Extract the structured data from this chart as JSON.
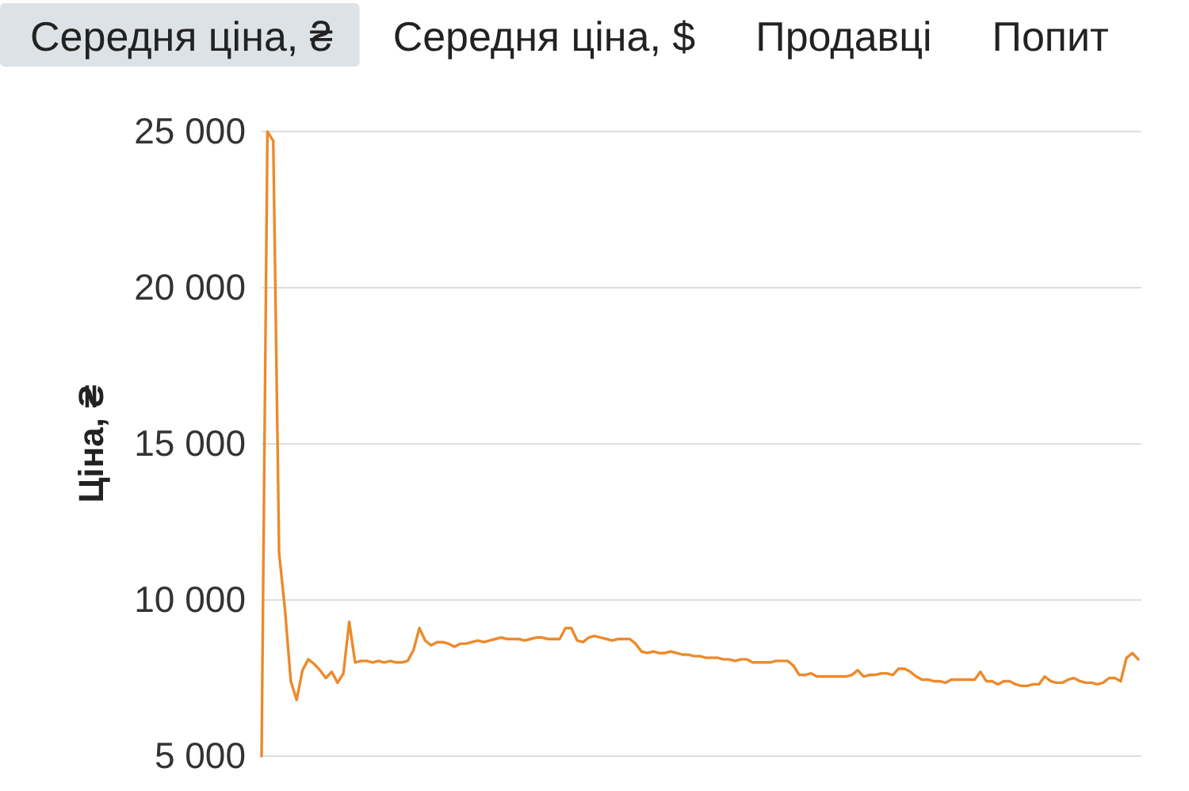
{
  "chart_data": {
    "type": "line",
    "title": "Середня ціна, ₴",
    "annotations": [
      "Середня ціна, $",
      "Продавці",
      "Попит"
    ],
    "ylabel": "Ціна, ₴",
    "categories": [
      null,
      null,
      null,
      null,
      null,
      null,
      null,
      null,
      null,
      null,
      null,
      null,
      null,
      null,
      null,
      null,
      null,
      null,
      null,
      null,
      null,
      null,
      null,
      null,
      null,
      null,
      null,
      null,
      null,
      null,
      null,
      null,
      null,
      null,
      null,
      null,
      null,
      null,
      null,
      null,
      null,
      null,
      null,
      null,
      null,
      null,
      null,
      null,
      null,
      null,
      null,
      null,
      null,
      null,
      null,
      null,
      null,
      null,
      null,
      null,
      null,
      null,
      null,
      null,
      null,
      null,
      null,
      null,
      null,
      null,
      null,
      null,
      null,
      null,
      null,
      null,
      null,
      null,
      null,
      null,
      null,
      null,
      null,
      null,
      null,
      null,
      null,
      null,
      null,
      null,
      null,
      null,
      null,
      null,
      null,
      null,
      null,
      null,
      null,
      null,
      null,
      null,
      null,
      null,
      null,
      null,
      null,
      null,
      null,
      null,
      null,
      null,
      null,
      null,
      null,
      null,
      null,
      null,
      null,
      null,
      null,
      null,
      null,
      null,
      null,
      null,
      null,
      null,
      null,
      null,
      null,
      null,
      null,
      null,
      null,
      null,
      null,
      null,
      null,
      null,
      null,
      null,
      null,
      null,
      null,
      null,
      null,
      null,
      null,
      null,
      null
    ],
    "values": [
      5000,
      25000,
      24700,
      11500,
      9700,
      7400,
      6800,
      7750,
      8100,
      7950,
      7750,
      7500,
      7700,
      7350,
      7650,
      9300,
      8000,
      8050,
      8050,
      8000,
      8050,
      8000,
      8050,
      8000,
      8000,
      8050,
      8400,
      9100,
      8700,
      8550,
      8650,
      8650,
      8600,
      8500,
      8600,
      8600,
      8650,
      8700,
      8650,
      8700,
      8750,
      8800,
      8750,
      8750,
      8750,
      8700,
      8750,
      8800,
      8800,
      8750,
      8750,
      8750,
      9100,
      9100,
      8700,
      8650,
      8800,
      8850,
      8800,
      8750,
      8700,
      8750,
      8750,
      8750,
      8600,
      8350,
      8300,
      8350,
      8300,
      8300,
      8350,
      8300,
      8250,
      8250,
      8200,
      8200,
      8150,
      8150,
      8150,
      8100,
      8100,
      8050,
      8100,
      8100,
      8000,
      8000,
      8000,
      8000,
      8050,
      8050,
      8050,
      7900,
      7600,
      7600,
      7650,
      7550,
      7550,
      7550,
      7550,
      7550,
      7550,
      7600,
      7750,
      7550,
      7600,
      7600,
      7650,
      7650,
      7600,
      7800,
      7800,
      7700,
      7550,
      7450,
      7450,
      7400,
      7400,
      7350,
      7450,
      7450,
      7450,
      7450,
      7450,
      7700,
      7400,
      7400,
      7300,
      7400,
      7400,
      7300,
      7250,
      7250,
      7300,
      7300,
      7550,
      7400,
      7350,
      7350,
      7450,
      7500,
      7400,
      7350,
      7350,
      7300,
      7350,
      7500,
      7500,
      7400,
      8150,
      8300,
      8100
    ],
    "color": "#ec8a2c",
    "ylim": [
      5000,
      25000
    ],
    "yticks": [
      {
        "value": 5000,
        "label": "5 000"
      },
      {
        "value": 10000,
        "label": "10 000"
      },
      {
        "value": 15000,
        "label": "15 000"
      },
      {
        "value": 20000,
        "label": "20 000"
      },
      {
        "value": 25000,
        "label": "25 000"
      }
    ],
    "grid": "y",
    "tick_labels": "y"
  }
}
